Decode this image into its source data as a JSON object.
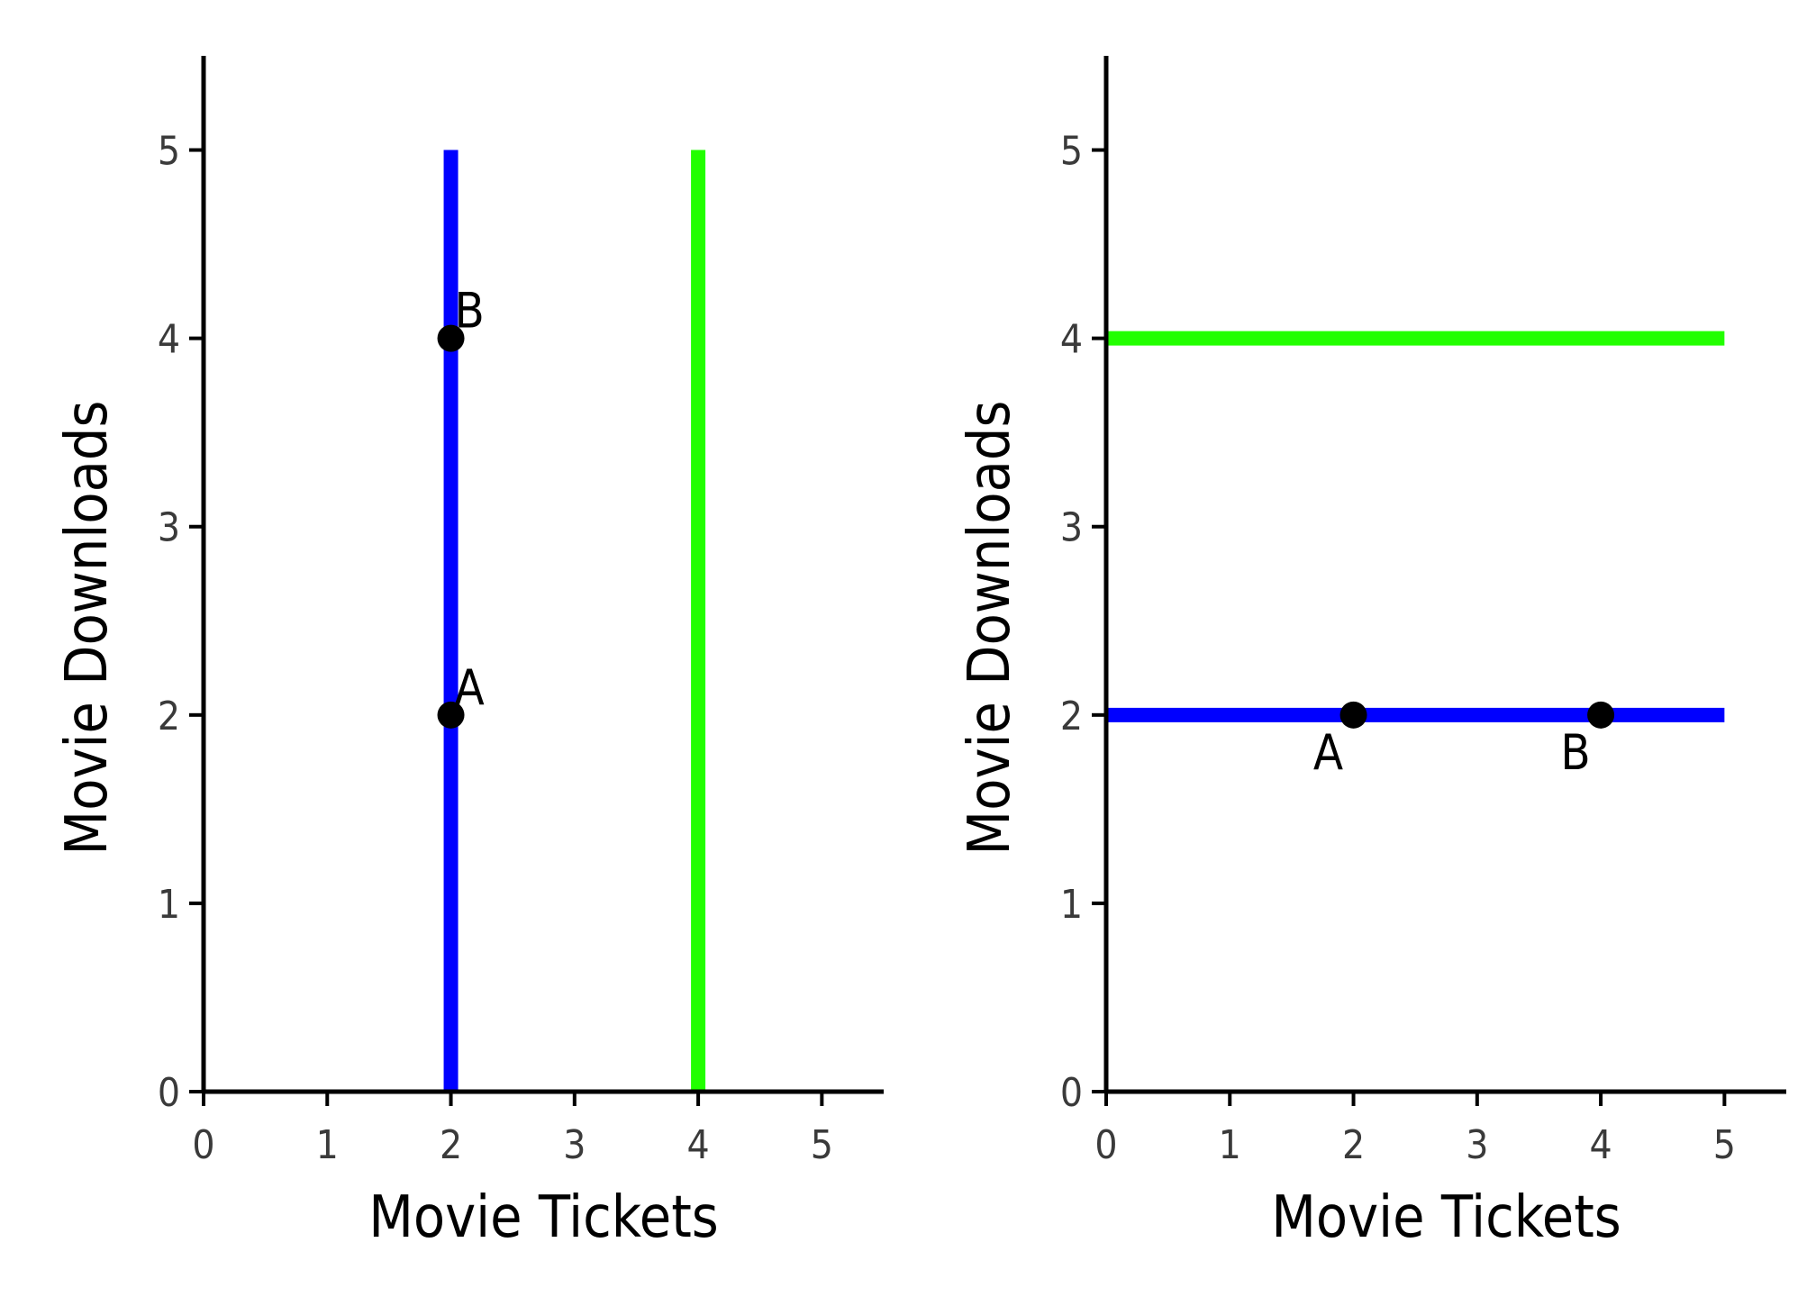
{
  "chart_data": [
    {
      "type": "line",
      "xlabel": "Movie Tickets",
      "ylabel": "Movie Downloads",
      "xlim": [
        0,
        5.5
      ],
      "ylim": [
        0,
        5.5
      ],
      "x_ticks": [
        "0",
        "1",
        "2",
        "3",
        "4",
        "5"
      ],
      "y_ticks": [
        "0",
        "1",
        "2",
        "3",
        "4",
        "5"
      ],
      "grid": false,
      "series": [
        {
          "color": "#0000ff",
          "x": [
            2,
            2
          ],
          "y": [
            0,
            5
          ]
        },
        {
          "color": "#22ff00",
          "x": [
            4,
            4
          ],
          "y": [
            0,
            5
          ]
        }
      ],
      "points": [
        {
          "label": "A",
          "x": 2,
          "y": 2,
          "label_pos": "above-right"
        },
        {
          "label": "B",
          "x": 2,
          "y": 4,
          "label_pos": "above-right"
        }
      ]
    },
    {
      "type": "line",
      "xlabel": "Movie Tickets",
      "ylabel": "Movie Downloads",
      "xlim": [
        0,
        5.5
      ],
      "ylim": [
        0,
        5.5
      ],
      "x_ticks": [
        "0",
        "1",
        "2",
        "3",
        "4",
        "5"
      ],
      "y_ticks": [
        "0",
        "1",
        "2",
        "3",
        "4",
        "5"
      ],
      "grid": false,
      "series": [
        {
          "color": "#22ff00",
          "x": [
            0,
            5
          ],
          "y": [
            4,
            4
          ]
        },
        {
          "color": "#0000ff",
          "x": [
            0,
            5
          ],
          "y": [
            2,
            2
          ]
        }
      ],
      "points": [
        {
          "label": "A",
          "x": 2,
          "y": 2,
          "label_pos": "below-left"
        },
        {
          "label": "B",
          "x": 4,
          "y": 2,
          "label_pos": "below-left"
        }
      ]
    }
  ]
}
